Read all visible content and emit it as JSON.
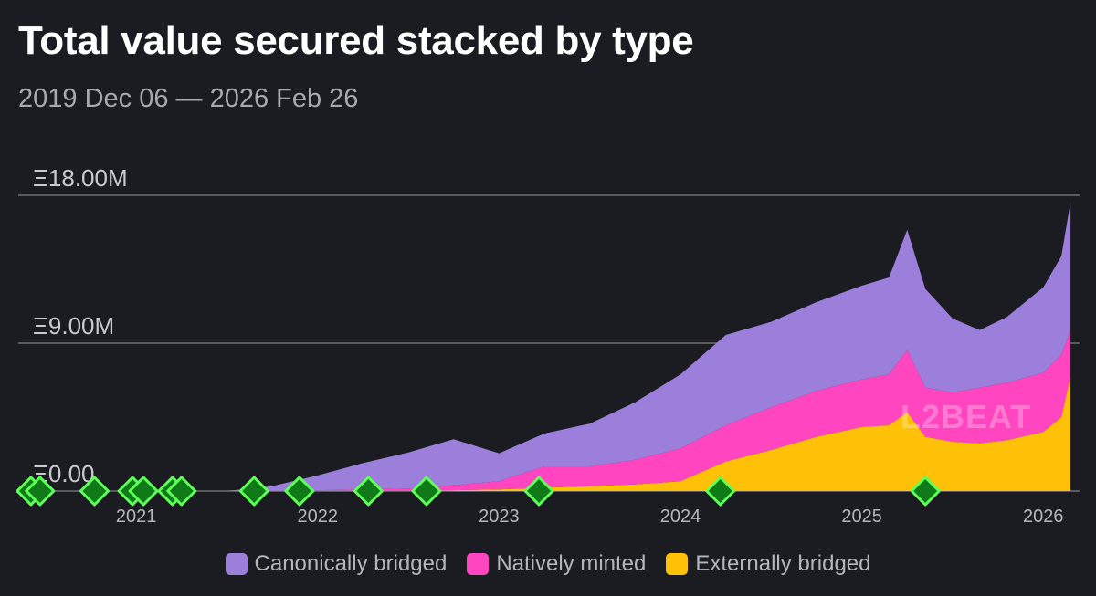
{
  "title": "Total value secured stacked by type",
  "subtitle": "2019 Dec 06 — 2026 Feb 26",
  "watermark": "L2BEAT",
  "colors": {
    "background": "#1b1c21",
    "grid": "#6e6f76",
    "canonical": "#9b7fdb",
    "native": "#ff46c0",
    "external": "#ffc107",
    "marker_fill": "#0f7a17",
    "marker_stroke": "#5dff58"
  },
  "legend": [
    {
      "label": "Canonically bridged",
      "color": "#9b7fdb"
    },
    {
      "label": "Natively minted",
      "color": "#ff46c0"
    },
    {
      "label": "Externally bridged",
      "color": "#ffc107"
    }
  ],
  "chart_data": {
    "type": "area",
    "stacked": true,
    "title": "Total value secured stacked by type",
    "subtitle": "2019 Dec 06 — 2026 Feb 26",
    "y_unit": "ETH (Ξ)",
    "ylim": [
      0,
      18
    ],
    "y_ticks": [
      {
        "value": 0,
        "label": "Ξ0.00"
      },
      {
        "value": 9,
        "label": "Ξ9.00M"
      },
      {
        "value": 18,
        "label": "Ξ18.00M"
      }
    ],
    "xlim": [
      2020.35,
      2026.2
    ],
    "x_ticks": [
      {
        "value": 2021.0,
        "label": "2021"
      },
      {
        "value": 2022.0,
        "label": "2022"
      },
      {
        "value": 2023.0,
        "label": "2023"
      },
      {
        "value": 2024.0,
        "label": "2024"
      },
      {
        "value": 2025.0,
        "label": "2025"
      },
      {
        "value": 2026.0,
        "label": "2026"
      }
    ],
    "grid": true,
    "legend_position": "bottom",
    "x": [
      2020.35,
      2021.0,
      2021.5,
      2021.75,
      2022.0,
      2022.25,
      2022.5,
      2022.75,
      2023.0,
      2023.25,
      2023.5,
      2023.75,
      2024.0,
      2024.25,
      2024.5,
      2024.75,
      2025.0,
      2025.15,
      2025.25,
      2025.35,
      2025.5,
      2025.65,
      2025.8,
      2026.0,
      2026.1,
      2026.15
    ],
    "series": [
      {
        "name": "Externally bridged",
        "values": [
          0,
          0,
          0,
          0,
          0,
          0,
          0,
          0.05,
          0.1,
          0.2,
          0.3,
          0.4,
          0.6,
          1.8,
          2.5,
          3.3,
          3.9,
          4.0,
          4.8,
          3.3,
          3.0,
          2.9,
          3.1,
          3.6,
          4.5,
          7.0
        ]
      },
      {
        "name": "Natively minted",
        "values": [
          0,
          0,
          0,
          0,
          0.05,
          0.1,
          0.15,
          0.3,
          0.5,
          1.3,
          1.2,
          1.5,
          2.0,
          2.2,
          2.6,
          2.8,
          2.9,
          3.1,
          3.8,
          3.0,
          3.0,
          3.4,
          3.5,
          3.6,
          3.8,
          2.8
        ]
      },
      {
        "name": "Canonically bridged",
        "values": [
          0,
          0,
          0,
          0.3,
          0.9,
          1.6,
          2.2,
          2.8,
          1.7,
          2.0,
          2.6,
          3.5,
          4.5,
          5.5,
          5.2,
          5.4,
          5.7,
          5.9,
          7.3,
          6.0,
          4.5,
          3.5,
          4.0,
          5.2,
          6.0,
          7.8
        ]
      }
    ],
    "markers_x": [
      2020.42,
      2020.47,
      2020.77,
      2020.98,
      2021.04,
      2021.2,
      2021.25,
      2021.65,
      2021.9,
      2022.28,
      2022.6,
      2023.22,
      2024.22,
      2025.35
    ]
  }
}
